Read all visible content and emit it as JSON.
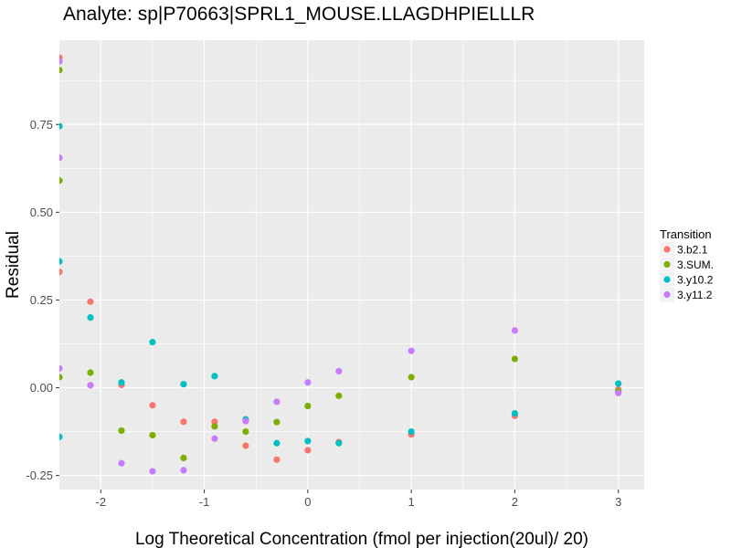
{
  "chart_data": {
    "type": "scatter",
    "title": "Analyte: sp|P70663|SPRL1_MOUSE.LLAGDHPIELLLR",
    "xlabel": "Log Theoretical Concentration (fmol per injection(20ul)/ 20)",
    "ylabel": "Residual",
    "xlim": [
      -2.4,
      3.25
    ],
    "ylim": [
      -0.29,
      0.99
    ],
    "x_ticks": [
      -2,
      -1,
      0,
      1,
      2,
      3
    ],
    "x_tick_labels": [
      "-2",
      "-1",
      "0",
      "1",
      "2",
      "3"
    ],
    "y_ticks": [
      -0.25,
      0,
      0.25,
      0.5,
      0.75
    ],
    "y_tick_labels": [
      "-0.25",
      "0.00",
      "0.25",
      "0.50",
      "0.75"
    ],
    "grid": true,
    "legend": {
      "title": "Transition",
      "position": "right"
    },
    "series": [
      {
        "name": "3.b2.1",
        "color": "#F8766D",
        "points": [
          [
            -2.4,
            0.94
          ],
          [
            -2.4,
            0.33
          ],
          [
            -2.1,
            0.245
          ],
          [
            -1.8,
            0.008
          ],
          [
            -1.5,
            -0.05
          ],
          [
            -1.2,
            -0.097
          ],
          [
            -0.9,
            -0.097
          ],
          [
            -0.6,
            -0.165
          ],
          [
            -0.3,
            -0.205
          ],
          [
            0.0,
            -0.178
          ],
          [
            0.3,
            -0.155
          ],
          [
            1.0,
            -0.133
          ],
          [
            2.0,
            -0.08
          ],
          [
            3.0,
            -0.005
          ]
        ]
      },
      {
        "name": "3.SUM.",
        "color": "#7CAE00",
        "points": [
          [
            -2.4,
            0.905
          ],
          [
            -2.4,
            0.59
          ],
          [
            -2.4,
            0.03
          ],
          [
            -2.1,
            0.043
          ],
          [
            -1.8,
            -0.122
          ],
          [
            -1.5,
            -0.135
          ],
          [
            -1.2,
            -0.2
          ],
          [
            -0.9,
            -0.11
          ],
          [
            -0.6,
            -0.125
          ],
          [
            -0.3,
            -0.098
          ],
          [
            0.0,
            -0.052
          ],
          [
            0.3,
            -0.023
          ],
          [
            1.0,
            0.03
          ],
          [
            2.0,
            0.082
          ],
          [
            3.0,
            -0.01
          ]
        ]
      },
      {
        "name": "3.y10.2",
        "color": "#00BFC4",
        "points": [
          [
            -2.4,
            0.745
          ],
          [
            -2.4,
            0.36
          ],
          [
            -2.4,
            -0.14
          ],
          [
            -2.1,
            0.2
          ],
          [
            -1.8,
            0.015
          ],
          [
            -1.5,
            0.13
          ],
          [
            -1.2,
            0.01
          ],
          [
            -0.9,
            0.033
          ],
          [
            -0.6,
            -0.09
          ],
          [
            -0.3,
            -0.158
          ],
          [
            0.0,
            -0.152
          ],
          [
            0.3,
            -0.158
          ],
          [
            1.0,
            -0.125
          ],
          [
            2.0,
            -0.073
          ],
          [
            3.0,
            0.012
          ]
        ]
      },
      {
        "name": "3.y11.2",
        "color": "#C77CFF",
        "points": [
          [
            -2.4,
            0.93
          ],
          [
            -2.4,
            0.655
          ],
          [
            -2.4,
            0.055
          ],
          [
            -2.1,
            0.007
          ],
          [
            -1.8,
            -0.215
          ],
          [
            -1.5,
            -0.238
          ],
          [
            -1.2,
            -0.235
          ],
          [
            -0.9,
            -0.145
          ],
          [
            -0.6,
            -0.095
          ],
          [
            -0.3,
            -0.04
          ],
          [
            0.0,
            0.015
          ],
          [
            0.3,
            0.047
          ],
          [
            1.0,
            0.105
          ],
          [
            2.0,
            0.163
          ],
          [
            3.0,
            -0.015
          ]
        ]
      }
    ]
  }
}
